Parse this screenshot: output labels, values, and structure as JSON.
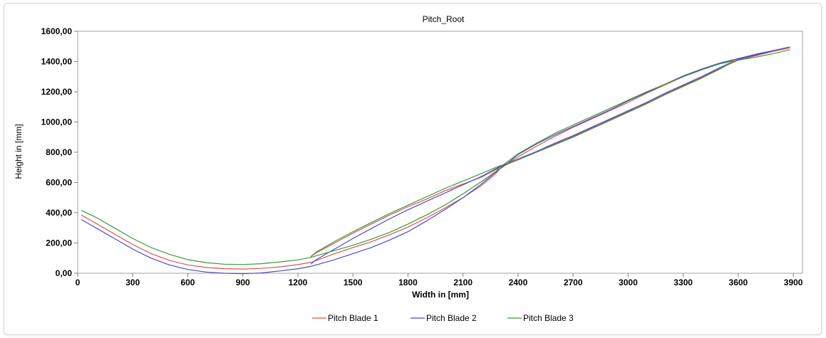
{
  "chart_data": {
    "type": "line",
    "title": "Pitch_Root",
    "xlabel": "Width in [mm]",
    "ylabel": "Height in [mm]",
    "xlim": [
      0,
      3950
    ],
    "ylim": [
      0,
      1600
    ],
    "x_ticks": [
      0,
      300,
      600,
      900,
      1200,
      1500,
      1800,
      2100,
      2400,
      2700,
      3000,
      3300,
      3600,
      3900
    ],
    "x_tick_labels": [
      "0",
      "300",
      "600",
      "900",
      "1200",
      "1500",
      "1800",
      "2100",
      "2400",
      "2700",
      "3000",
      "3300",
      "3600",
      "3900"
    ],
    "y_ticks": [
      0,
      200,
      400,
      600,
      800,
      1000,
      1200,
      1400,
      1600
    ],
    "y_tick_labels": [
      "0,00",
      "200,00",
      "400,00",
      "600,00",
      "800,00",
      "1000,00",
      "1200,00",
      "1400,00",
      "1600,00"
    ],
    "grid": false,
    "legend_position": "bottom-center",
    "series": [
      {
        "name": "Pitch Blade 1",
        "color": "#e0534a",
        "points": [
          [
            20,
            385
          ],
          [
            100,
            330
          ],
          [
            200,
            260
          ],
          [
            300,
            190
          ],
          [
            400,
            130
          ],
          [
            500,
            85
          ],
          [
            600,
            55
          ],
          [
            700,
            38
          ],
          [
            800,
            30
          ],
          [
            900,
            28
          ],
          [
            1000,
            32
          ],
          [
            1100,
            42
          ],
          [
            1200,
            57
          ],
          [
            1280,
            75
          ],
          [
            1400,
            130
          ],
          [
            1500,
            170
          ],
          [
            1600,
            208
          ],
          [
            1700,
            255
          ],
          [
            1800,
            305
          ],
          [
            1900,
            365
          ],
          [
            2000,
            430
          ],
          [
            2100,
            500
          ],
          [
            2200,
            580
          ],
          [
            2280,
            660
          ],
          [
            2300,
            690
          ],
          [
            2400,
            770
          ],
          [
            2500,
            840
          ],
          [
            2600,
            905
          ],
          [
            2700,
            965
          ],
          [
            2800,
            1020
          ],
          [
            2900,
            1075
          ],
          [
            3000,
            1130
          ],
          [
            3100,
            1190
          ],
          [
            3200,
            1245
          ],
          [
            3300,
            1300
          ],
          [
            3400,
            1345
          ],
          [
            3500,
            1385
          ],
          [
            3600,
            1420
          ],
          [
            3700,
            1445
          ],
          [
            3800,
            1470
          ],
          [
            3880,
            1490
          ],
          [
            3800,
            1470
          ],
          [
            3700,
            1440
          ],
          [
            3600,
            1410
          ],
          [
            3500,
            1355
          ],
          [
            3400,
            1295
          ],
          [
            3300,
            1240
          ],
          [
            3200,
            1185
          ],
          [
            3100,
            1125
          ],
          [
            3000,
            1070
          ],
          [
            2900,
            1015
          ],
          [
            2800,
            960
          ],
          [
            2700,
            905
          ],
          [
            2600,
            855
          ],
          [
            2500,
            800
          ],
          [
            2400,
            750
          ],
          [
            2300,
            700
          ],
          [
            2200,
            635
          ],
          [
            2100,
            590
          ],
          [
            2000,
            545
          ],
          [
            1900,
            490
          ],
          [
            1800,
            440
          ],
          [
            1700,
            385
          ],
          [
            1600,
            325
          ],
          [
            1500,
            265
          ],
          [
            1400,
            200
          ],
          [
            1300,
            135
          ],
          [
            1270,
            110
          ]
        ]
      },
      {
        "name": "Pitch Blade 2",
        "color": "#4a4bd0",
        "points": [
          [
            20,
            355
          ],
          [
            100,
            300
          ],
          [
            200,
            230
          ],
          [
            300,
            160
          ],
          [
            400,
            100
          ],
          [
            500,
            55
          ],
          [
            600,
            25
          ],
          [
            700,
            8
          ],
          [
            800,
            0
          ],
          [
            900,
            -3
          ],
          [
            1000,
            2
          ],
          [
            1100,
            15
          ],
          [
            1200,
            30
          ],
          [
            1270,
            45
          ],
          [
            1400,
            90
          ],
          [
            1500,
            130
          ],
          [
            1600,
            170
          ],
          [
            1700,
            220
          ],
          [
            1800,
            275
          ],
          [
            1900,
            345
          ],
          [
            2000,
            420
          ],
          [
            2100,
            500
          ],
          [
            2200,
            590
          ],
          [
            2280,
            670
          ],
          [
            2350,
            735
          ],
          [
            2400,
            785
          ],
          [
            2500,
            855
          ],
          [
            2600,
            915
          ],
          [
            2700,
            970
          ],
          [
            2800,
            1025
          ],
          [
            2900,
            1080
          ],
          [
            3000,
            1140
          ],
          [
            3100,
            1195
          ],
          [
            3200,
            1250
          ],
          [
            3300,
            1305
          ],
          [
            3400,
            1350
          ],
          [
            3500,
            1390
          ],
          [
            3600,
            1420
          ],
          [
            3700,
            1450
          ],
          [
            3800,
            1475
          ],
          [
            3880,
            1497
          ],
          [
            3800,
            1475
          ],
          [
            3700,
            1445
          ],
          [
            3600,
            1415
          ],
          [
            3500,
            1360
          ],
          [
            3400,
            1300
          ],
          [
            3300,
            1245
          ],
          [
            3200,
            1190
          ],
          [
            3100,
            1130
          ],
          [
            3000,
            1075
          ],
          [
            2900,
            1020
          ],
          [
            2800,
            965
          ],
          [
            2700,
            910
          ],
          [
            2600,
            860
          ],
          [
            2500,
            805
          ],
          [
            2400,
            755
          ],
          [
            2300,
            705
          ],
          [
            2200,
            640
          ],
          [
            2100,
            585
          ],
          [
            2000,
            530
          ],
          [
            1900,
            475
          ],
          [
            1800,
            420
          ],
          [
            1700,
            360
          ],
          [
            1600,
            295
          ],
          [
            1500,
            230
          ],
          [
            1400,
            160
          ],
          [
            1300,
            90
          ],
          [
            1270,
            60
          ]
        ]
      },
      {
        "name": "Pitch Blade 3",
        "color": "#3a9a3a",
        "points": [
          [
            20,
            415
          ],
          [
            100,
            370
          ],
          [
            200,
            300
          ],
          [
            300,
            230
          ],
          [
            400,
            170
          ],
          [
            500,
            125
          ],
          [
            600,
            90
          ],
          [
            700,
            70
          ],
          [
            800,
            60
          ],
          [
            900,
            58
          ],
          [
            1000,
            63
          ],
          [
            1100,
            75
          ],
          [
            1200,
            88
          ],
          [
            1270,
            105
          ],
          [
            1400,
            150
          ],
          [
            1500,
            185
          ],
          [
            1600,
            225
          ],
          [
            1700,
            270
          ],
          [
            1800,
            325
          ],
          [
            1900,
            385
          ],
          [
            2000,
            450
          ],
          [
            2100,
            525
          ],
          [
            2200,
            605
          ],
          [
            2280,
            675
          ],
          [
            2300,
            700
          ],
          [
            2400,
            790
          ],
          [
            2500,
            860
          ],
          [
            2600,
            925
          ],
          [
            2700,
            980
          ],
          [
            2800,
            1035
          ],
          [
            2900,
            1090
          ],
          [
            3000,
            1145
          ],
          [
            3100,
            1200
          ],
          [
            3200,
            1250
          ],
          [
            3300,
            1300
          ],
          [
            3400,
            1345
          ],
          [
            3500,
            1385
          ],
          [
            3580,
            1405
          ],
          [
            3700,
            1430
          ],
          [
            3800,
            1455
          ],
          [
            3880,
            1478
          ],
          [
            3800,
            1455
          ],
          [
            3700,
            1430
          ],
          [
            3580,
            1405
          ],
          [
            3500,
            1350
          ],
          [
            3400,
            1290
          ],
          [
            3300,
            1235
          ],
          [
            3200,
            1180
          ],
          [
            3100,
            1120
          ],
          [
            3000,
            1065
          ],
          [
            2900,
            1010
          ],
          [
            2800,
            955
          ],
          [
            2700,
            900
          ],
          [
            2600,
            850
          ],
          [
            2500,
            800
          ],
          [
            2400,
            750
          ],
          [
            2300,
            710
          ],
          [
            2200,
            660
          ],
          [
            2100,
            610
          ],
          [
            2000,
            560
          ],
          [
            1900,
            505
          ],
          [
            1800,
            450
          ],
          [
            1700,
            395
          ],
          [
            1600,
            335
          ],
          [
            1500,
            275
          ],
          [
            1400,
            210
          ],
          [
            1300,
            140
          ],
          [
            1270,
            110
          ]
        ]
      }
    ]
  }
}
